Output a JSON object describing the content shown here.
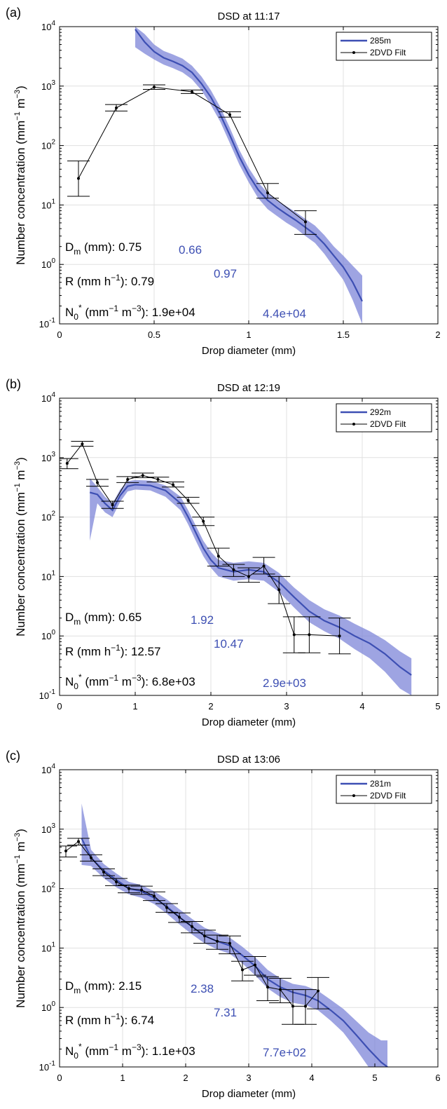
{
  "chart_data": [
    {
      "type": "line",
      "panel_label": "(a)",
      "title": "DSD at 11:17",
      "xlabel": "Drop diameter (mm)",
      "ylabel": "Number concentration (mm⁻¹ m⁻³)",
      "xlim": [
        0,
        2
      ],
      "ylim": [
        0.1,
        10000
      ],
      "yscale": "log",
      "xticks": [
        "0",
        "0.5",
        "1",
        "1.5",
        "2"
      ],
      "yticks": [
        {
          "base": "10",
          "exp": "-1"
        },
        {
          "base": "10",
          "exp": "0"
        },
        {
          "base": "10",
          "exp": "1"
        },
        {
          "base": "10",
          "exp": "2"
        },
        {
          "base": "10",
          "exp": "3"
        },
        {
          "base": "10",
          "exp": "4"
        }
      ],
      "grid": true,
      "legend_position": "top-right",
      "legend": [
        "285m",
        "2DVD Filt"
      ],
      "colors": {
        "radar": "#3d4fb3",
        "band": "#7d86d8",
        "disdrometer": "#000000",
        "annotation_radar": "#3d4fb3"
      },
      "series": [
        {
          "name": "285m",
          "x": [
            0.4,
            0.45,
            0.5,
            0.55,
            0.6,
            0.65,
            0.7,
            0.75,
            0.8,
            0.85,
            0.9,
            0.95,
            1.0,
            1.05,
            1.1,
            1.15,
            1.2,
            1.25,
            1.3,
            1.35,
            1.4,
            1.45,
            1.5,
            1.55,
            1.6
          ],
          "y": [
            9000,
            5500,
            3800,
            3000,
            2600,
            2200,
            1700,
            1100,
            650,
            330,
            150,
            65,
            32,
            18,
            12,
            9,
            7,
            5.5,
            4.2,
            3.2,
            2.2,
            1.4,
            0.9,
            0.5,
            0.24
          ],
          "band_lower": [
            4500,
            3500,
            2800,
            2300,
            2000,
            1700,
            1300,
            850,
            480,
            250,
            110,
            48,
            24,
            13,
            8.5,
            6.5,
            5,
            4,
            3,
            2.3,
            1.5,
            0.9,
            0.55,
            0.25,
            0.1
          ],
          "band_upper": [
            10000,
            7500,
            5000,
            3900,
            3400,
            2900,
            2200,
            1450,
            850,
            440,
            200,
            85,
            42,
            24,
            16,
            12,
            9.5,
            7.5,
            5.8,
            4.5,
            3.1,
            2.0,
            1.4,
            0.95,
            0.65
          ]
        },
        {
          "name": "2DVD Filt",
          "x": [
            0.1,
            0.3,
            0.5,
            0.7,
            0.9,
            1.1,
            1.3
          ],
          "y": [
            28,
            430,
            960,
            800,
            330,
            16,
            5.2
          ],
          "err_lower": [
            14,
            380,
            880,
            750,
            300,
            13,
            3.2
          ],
          "err_upper": [
            55,
            490,
            1050,
            860,
            370,
            23,
            8
          ]
        }
      ],
      "annotations": {
        "dm": {
          "label": "D",
          "sub": "m",
          "rest": " (mm): 0.75",
          "radar": "0.66"
        },
        "r": {
          "label": "R (mm h",
          "sup": "−1",
          "rest": "): 0.79",
          "radar": "0.97"
        },
        "n0": {
          "label": "N",
          "sub": "0",
          "sup1": "*",
          "mid": " (mm",
          "sup2": "−1",
          "mid2": " m",
          "sup3": "−3",
          "rest": "): 1.9e+04",
          "radar": "4.4e+04"
        }
      }
    },
    {
      "type": "line",
      "panel_label": "(b)",
      "title": "DSD at 12:19",
      "xlabel": "Drop diameter (mm)",
      "ylabel": "Number concentration (mm⁻¹ m⁻³)",
      "xlim": [
        0,
        5
      ],
      "ylim": [
        0.1,
        10000
      ],
      "yscale": "log",
      "xticks": [
        "0",
        "1",
        "2",
        "3",
        "4",
        "5"
      ],
      "yticks": [
        {
          "base": "10",
          "exp": "-1"
        },
        {
          "base": "10",
          "exp": "0"
        },
        {
          "base": "10",
          "exp": "1"
        },
        {
          "base": "10",
          "exp": "2"
        },
        {
          "base": "10",
          "exp": "3"
        },
        {
          "base": "10",
          "exp": "4"
        }
      ],
      "grid": true,
      "legend_position": "top-right",
      "legend": [
        "292m",
        "2DVD Filt"
      ],
      "colors": {
        "radar": "#3d4fb3",
        "band": "#7d86d8",
        "disdrometer": "#000000",
        "annotation_radar": "#3d4fb3"
      },
      "series": [
        {
          "name": "292m",
          "x": [
            0.4,
            0.5,
            0.6,
            0.7,
            0.8,
            0.9,
            1.0,
            1.2,
            1.4,
            1.6,
            1.7,
            1.8,
            1.9,
            2.0,
            2.1,
            2.3,
            2.5,
            2.7,
            2.9,
            3.1,
            3.3,
            3.5,
            3.7,
            3.9,
            4.1,
            4.3,
            4.5,
            4.65
          ],
          "y": [
            260,
            240,
            170,
            130,
            230,
            330,
            350,
            340,
            280,
            170,
            100,
            55,
            30,
            19,
            14,
            12,
            13,
            12,
            8,
            4.5,
            2.6,
            1.8,
            1.4,
            1.0,
            0.75,
            0.5,
            0.3,
            0.22
          ],
          "band_lower": [
            40,
            170,
            120,
            100,
            180,
            270,
            290,
            280,
            220,
            130,
            75,
            40,
            22,
            14,
            10,
            8.5,
            9,
            8.5,
            5.5,
            3,
            1.7,
            1.2,
            0.9,
            0.6,
            0.42,
            0.25,
            0.13,
            0.1
          ],
          "band_upper": [
            450,
            320,
            220,
            170,
            290,
            400,
            420,
            410,
            340,
            220,
            130,
            72,
            40,
            26,
            19,
            17,
            18,
            17,
            11.5,
            6.5,
            4,
            2.8,
            2.2,
            1.6,
            1.2,
            0.85,
            0.55,
            0.42
          ]
        },
        {
          "name": "2DVD Filt",
          "x": [
            0.1,
            0.3,
            0.5,
            0.7,
            0.9,
            1.1,
            1.3,
            1.5,
            1.7,
            1.9,
            2.1,
            2.3,
            2.5,
            2.7,
            2.9,
            3.1,
            3.3,
            3.7
          ],
          "y": [
            800,
            1700,
            380,
            160,
            430,
            500,
            430,
            350,
            190,
            85,
            22,
            13,
            10,
            15,
            6,
            1.05,
            1.05,
            1.0
          ],
          "err_lower": [
            650,
            1550,
            330,
            140,
            380,
            460,
            390,
            320,
            170,
            72,
            15,
            10,
            8,
            11,
            3.5,
            0.52,
            0.52,
            0.5
          ],
          "err_upper": [
            960,
            1880,
            430,
            185,
            480,
            550,
            470,
            390,
            215,
            100,
            30,
            16,
            14,
            21,
            10,
            2.1,
            2.1,
            2.0
          ]
        }
      ],
      "annotations": {
        "dm": {
          "label": "D",
          "sub": "m",
          "rest": " (mm): 0.65",
          "radar": "1.92"
        },
        "r": {
          "label": "R (mm h",
          "sup": "−1",
          "rest": "): 12.57",
          "radar": "10.47"
        },
        "n0": {
          "label": "N",
          "sub": "0",
          "sup1": "*",
          "mid": " (mm",
          "sup2": "−1",
          "mid2": " m",
          "sup3": "−3",
          "rest": "): 6.8e+03",
          "radar": "2.9e+03"
        }
      }
    },
    {
      "type": "line",
      "panel_label": "(c)",
      "title": "DSD at 13:06",
      "xlabel": "Drop diameter (mm)",
      "ylabel": "Number concentration (mm⁻¹ m⁻³)",
      "xlim": [
        0,
        6
      ],
      "ylim": [
        0.1,
        10000
      ],
      "yscale": "log",
      "xticks": [
        "0",
        "1",
        "2",
        "3",
        "4",
        "5",
        "6"
      ],
      "yticks": [
        {
          "base": "10",
          "exp": "-1"
        },
        {
          "base": "10",
          "exp": "0"
        },
        {
          "base": "10",
          "exp": "1"
        },
        {
          "base": "10",
          "exp": "2"
        },
        {
          "base": "10",
          "exp": "3"
        },
        {
          "base": "10",
          "exp": "4"
        }
      ],
      "grid": true,
      "legend_position": "top-right",
      "legend": [
        "281m",
        "2DVD Filt"
      ],
      "colors": {
        "radar": "#3d4fb3",
        "band": "#7d86d8",
        "disdrometer": "#000000",
        "annotation_radar": "#3d4fb3"
      },
      "series": [
        {
          "name": "281m",
          "x": [
            0.35,
            0.5,
            0.7,
            0.9,
            1.1,
            1.3,
            1.5,
            1.7,
            1.9,
            2.1,
            2.3,
            2.5,
            2.7,
            2.9,
            3.1,
            3.3,
            3.5,
            3.7,
            3.9,
            4.1,
            4.3,
            4.5,
            4.7,
            4.9,
            5.1,
            5.2
          ],
          "y": [
            700,
            330,
            200,
            140,
            100,
            90,
            70,
            50,
            33,
            23,
            16,
            13,
            11,
            7.5,
            5,
            3,
            2.2,
            1.8,
            1.6,
            1.3,
            0.9,
            0.6,
            0.35,
            0.2,
            0.12,
            0.1
          ],
          "band_lower": [
            250,
            240,
            150,
            105,
            80,
            70,
            55,
            38,
            25,
            17,
            12,
            9.5,
            8,
            5.5,
            3.5,
            2.1,
            1.5,
            1.2,
            1.1,
            0.9,
            0.6,
            0.38,
            0.2,
            0.1,
            0.1,
            0.1
          ],
          "band_upper": [
            2700,
            450,
            260,
            180,
            130,
            115,
            90,
            66,
            45,
            31,
            22,
            18,
            15,
            10.5,
            7,
            4.3,
            3.1,
            2.5,
            2.3,
            1.9,
            1.35,
            0.95,
            0.6,
            0.38,
            0.28,
            0.28
          ]
        },
        {
          "name": "2DVD Filt",
          "x": [
            0.1,
            0.3,
            0.5,
            0.7,
            0.9,
            1.1,
            1.3,
            1.5,
            1.7,
            1.9,
            2.1,
            2.3,
            2.5,
            2.7,
            2.9,
            3.1,
            3.3,
            3.5,
            3.7,
            3.9,
            4.1
          ],
          "y": [
            430,
            620,
            330,
            190,
            130,
            100,
            95,
            75,
            48,
            33,
            23,
            16,
            13,
            12,
            4.3,
            5.2,
            2.2,
            2.0,
            1.05,
            1.05,
            1.9
          ],
          "err_lower": [
            340,
            540,
            290,
            165,
            112,
            85,
            80,
            63,
            40,
            27,
            18,
            12,
            9.5,
            8,
            2.8,
            3.5,
            1.3,
            1.2,
            0.52,
            0.52,
            0.95
          ],
          "err_upper": [
            520,
            700,
            370,
            215,
            148,
            115,
            110,
            88,
            56,
            39,
            28,
            20,
            16.5,
            16,
            6,
            7.2,
            3.3,
            3.1,
            2.0,
            2.0,
            3.2
          ]
        }
      ],
      "annotations": {
        "dm": {
          "label": "D",
          "sub": "m",
          "rest": " (mm): 2.15",
          "radar": "2.38"
        },
        "r": {
          "label": "R (mm h",
          "sup": "−1",
          "rest": "): 6.74",
          "radar": "7.31"
        },
        "n0": {
          "label": "N",
          "sub": "0",
          "sup1": "*",
          "mid": " (mm",
          "sup2": "−1",
          "mid2": " m",
          "sup3": "−3",
          "rest": "): 1.1e+03",
          "radar": "7.7e+02"
        }
      }
    }
  ]
}
